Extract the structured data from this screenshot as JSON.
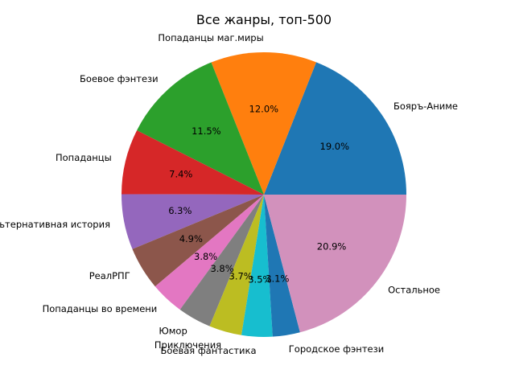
{
  "chart_data": {
    "type": "pie",
    "title": "Все жанры, топ-500",
    "categories": [
      "Бояръ-Аниме",
      "Попаданцы маг.миры",
      "Боевое фэнтези",
      "Попаданцы",
      "Альтернативная история",
      "РеалРПГ",
      "Попаданцы во времени",
      "Юмор",
      "Приключения",
      "Боевая фантастика",
      "Городское фэнтези",
      "Остальное"
    ],
    "values": [
      19.0,
      12.0,
      11.5,
      7.4,
      6.3,
      4.9,
      3.8,
      3.8,
      3.7,
      3.5,
      3.1,
      20.9
    ],
    "value_labels": [
      "19.0%",
      "12.0%",
      "11.5%",
      "7.4%",
      "6.3%",
      "4.9%",
      "3.8%",
      "3.8%",
      "3.7%",
      "3.5%",
      "3.1%",
      "20.9%"
    ],
    "colors": [
      "#1f77b4",
      "#ff7f0e",
      "#2ca02c",
      "#d62728",
      "#9467bd",
      "#8c564b",
      "#e377c2",
      "#7f7f7f",
      "#bcbd22",
      "#17becf",
      "#1f77b4",
      "#d291bc"
    ],
    "start_angle_deg": 0,
    "direction": "counterclockwise"
  }
}
